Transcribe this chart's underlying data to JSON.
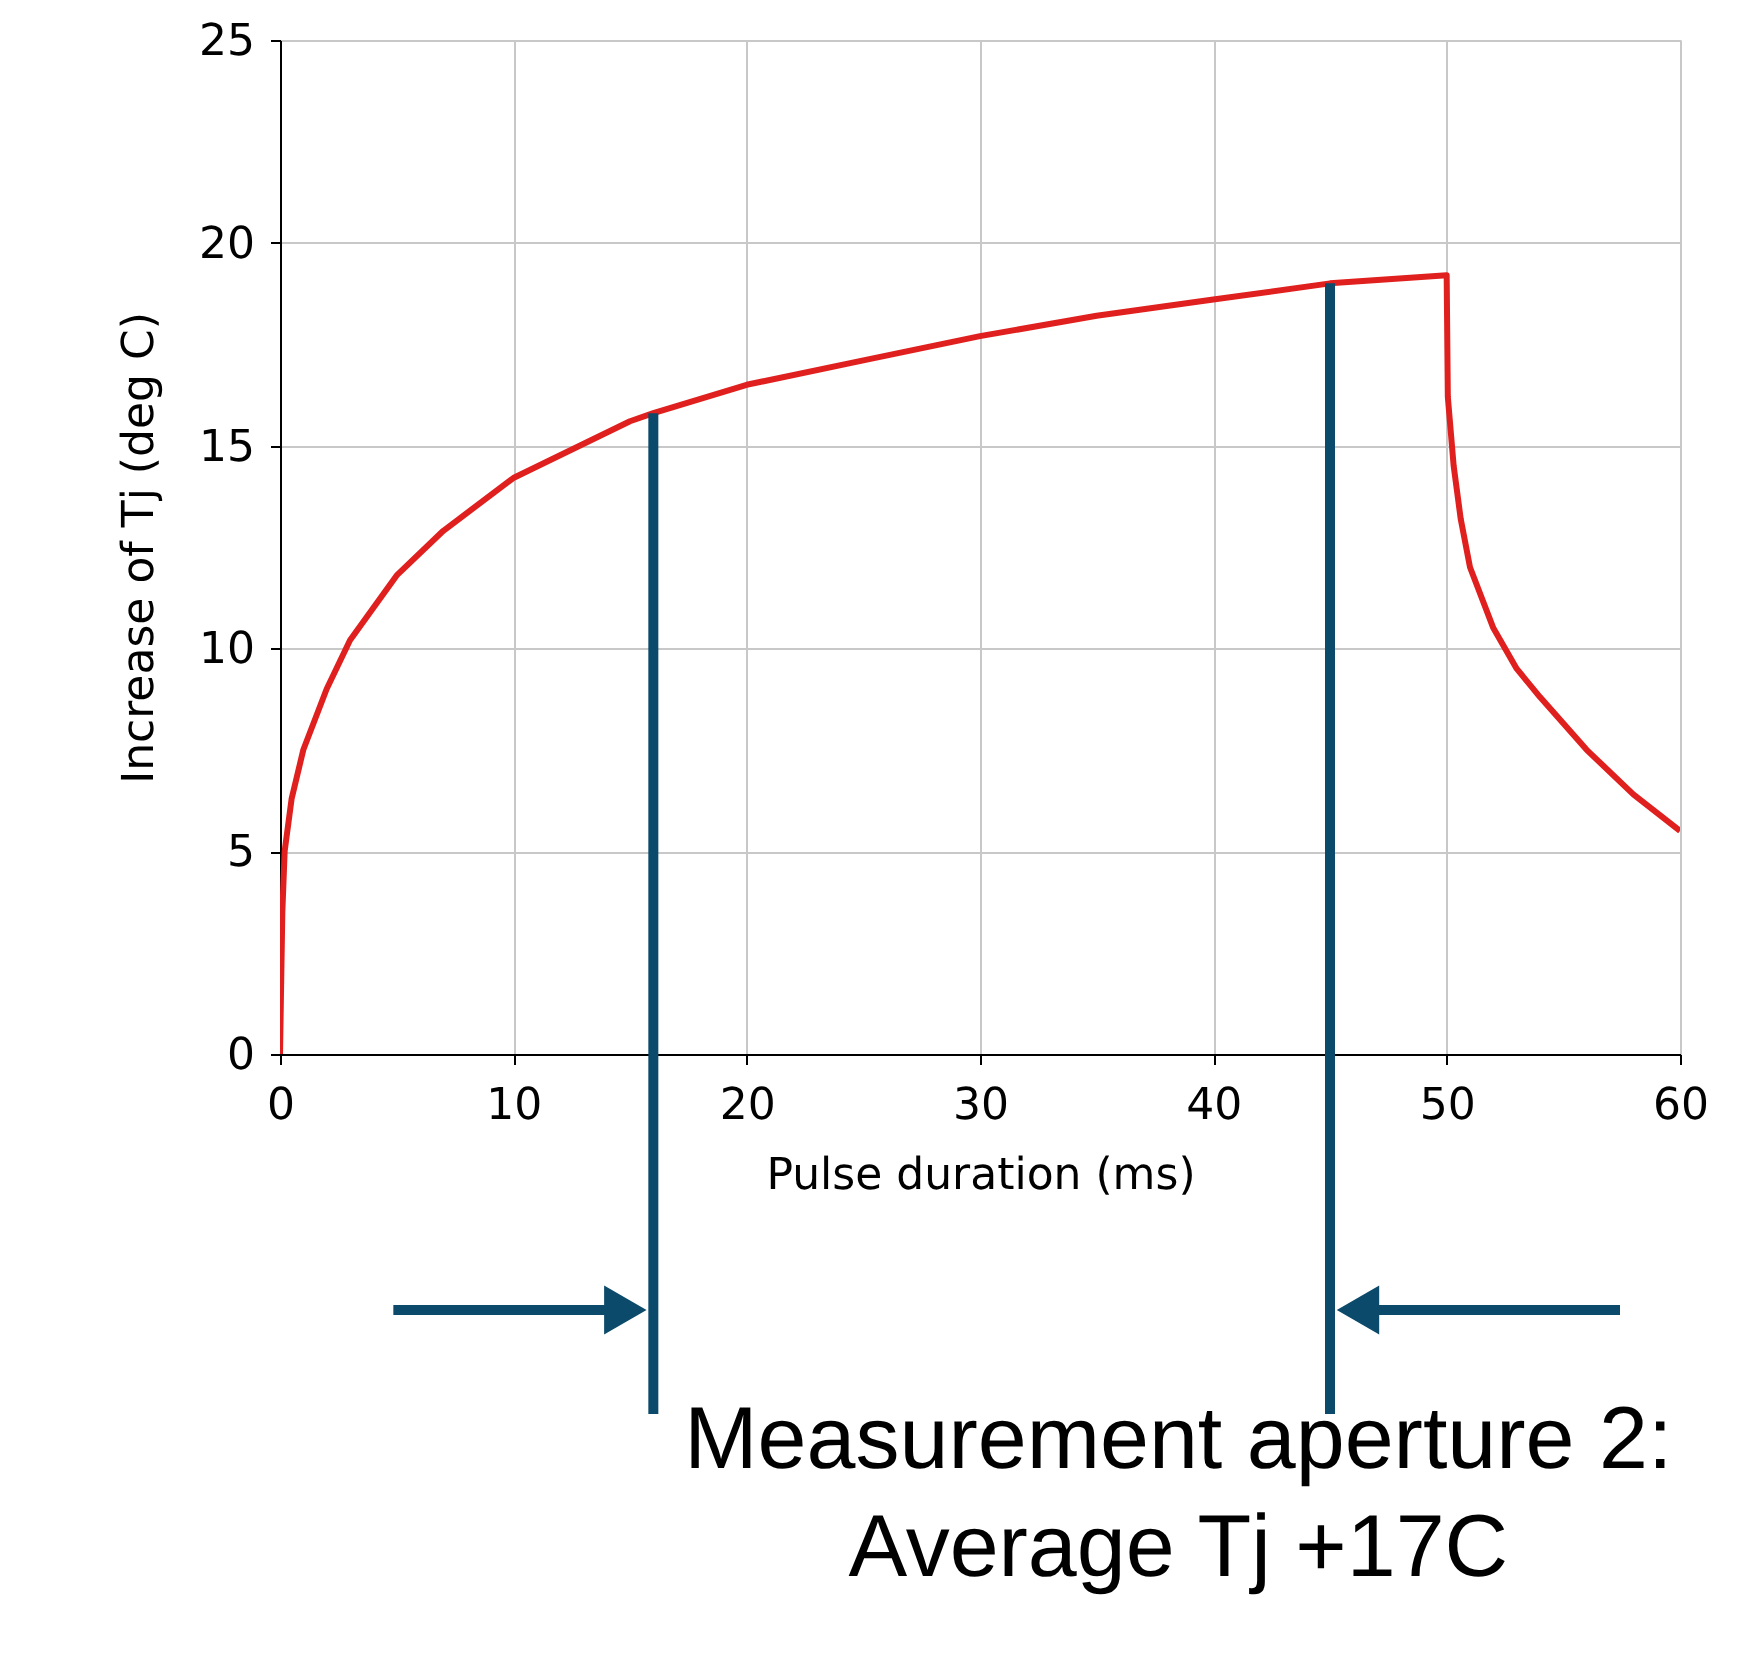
{
  "chart_data": {
    "type": "line",
    "xlabel": "Pulse duration (ms)",
    "ylabel": "Increase of Tj (deg C)",
    "x": [
      0,
      0.1,
      0.2,
      0.5,
      1,
      2,
      3,
      5,
      7,
      10,
      15,
      16,
      20,
      25,
      30,
      35,
      40,
      45,
      50,
      50.05,
      50.3,
      50.6,
      51,
      52,
      53,
      54,
      56,
      58,
      60
    ],
    "series": [
      {
        "color": "#e0201e",
        "values": [
          0,
          3.5,
          5,
          6.3,
          7.5,
          9,
          10.2,
          11.8,
          12.9,
          14.2,
          15.6,
          15.8,
          16.5,
          17.1,
          17.7,
          18.2,
          18.6,
          19.0,
          19.2,
          16.2,
          14.5,
          13.2,
          12.0,
          10.5,
          9.5,
          8.8,
          7.5,
          6.4,
          5.5
        ]
      }
    ],
    "xlim": [
      0,
      60
    ],
    "ylim": [
      0,
      25
    ],
    "xticks": [
      0,
      10,
      20,
      30,
      40,
      50,
      60
    ],
    "yticks": [
      0,
      5,
      10,
      15,
      20,
      25
    ],
    "grid": true,
    "ref_lines": [
      {
        "axis": "x",
        "value": 16,
        "color": "#0b4a6a"
      },
      {
        "axis": "x",
        "value": 45,
        "color": "#0b4a6a"
      }
    ],
    "annotations": [
      "Measurement aperture 2:\nAverage Tj +17C"
    ]
  }
}
